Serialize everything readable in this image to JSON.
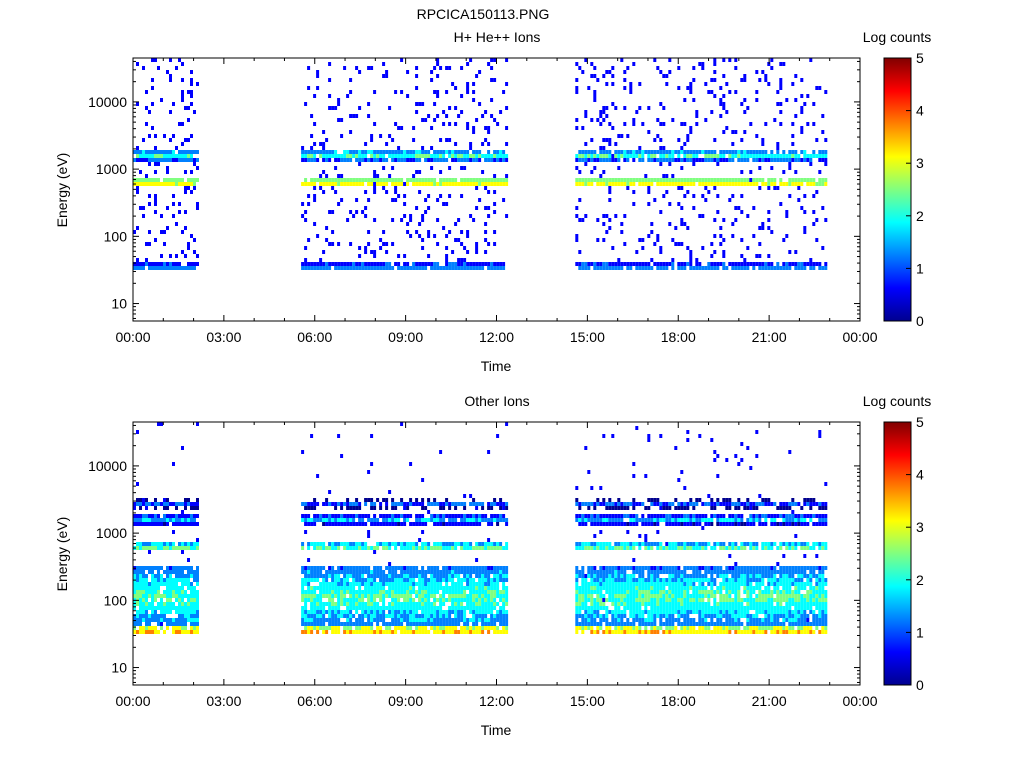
{
  "title": "RPCICA150113.PNG",
  "colorbar": {
    "label": "Log counts",
    "ticks": [
      "0",
      "1",
      "2",
      "3",
      "4",
      "5"
    ],
    "range": [
      0,
      5
    ],
    "colors": [
      "#00008f",
      "#0000ff",
      "#0080ff",
      "#00ffff",
      "#80ff80",
      "#ffff00",
      "#ff8000",
      "#ff0000",
      "#800000"
    ]
  },
  "chart_data": [
    {
      "type": "heatmap",
      "title": "H+ He++ Ions",
      "xlabel": "Time",
      "ylabel": "Energy (eV)",
      "xticks": [
        "00:00",
        "03:00",
        "06:00",
        "09:00",
        "12:00",
        "15:00",
        "18:00",
        "21:00",
        "00:00"
      ],
      "xlim_hours": [
        0,
        24
      ],
      "yscale": "log",
      "ylim": [
        5.5,
        45000
      ],
      "yticks": [
        "10",
        "100",
        "1000",
        "10000"
      ],
      "data_intervals_hours": [
        [
          0,
          2.15
        ],
        [
          5.55,
          12.3
        ],
        [
          14.6,
          22.9
        ]
      ],
      "bands": [
        {
          "energy_ev": 1600,
          "log_counts": 2.2
        },
        {
          "energy_ev": 620,
          "log_counts": 3.3
        },
        {
          "energy_ev": 35,
          "log_counts": 1.5
        }
      ],
      "colorbar_label": "Log counts",
      "colorbar_range": [
        0,
        5
      ]
    },
    {
      "type": "heatmap",
      "title": "Other Ions",
      "xlabel": "Time",
      "ylabel": "Energy (eV)",
      "xticks": [
        "00:00",
        "03:00",
        "06:00",
        "09:00",
        "12:00",
        "15:00",
        "18:00",
        "21:00",
        "00:00"
      ],
      "xlim_hours": [
        0,
        24
      ],
      "yscale": "log",
      "ylim": [
        5.5,
        45000
      ],
      "yticks": [
        "10",
        "100",
        "1000",
        "10000"
      ],
      "data_intervals_hours": [
        [
          0,
          2.15
        ],
        [
          5.55,
          12.3
        ],
        [
          14.6,
          22.9
        ]
      ],
      "bands": [
        {
          "energy_ev": 2700,
          "log_counts": 1.0
        },
        {
          "energy_ev": 1600,
          "log_counts": 1.7
        },
        {
          "energy_ev": 620,
          "log_counts": 2.4
        },
        {
          "energy_ev": 110,
          "log_counts": 2.3
        },
        {
          "energy_ev": 35,
          "log_counts": 3.6
        }
      ],
      "colorbar_label": "Log counts",
      "colorbar_range": [
        0,
        5
      ]
    }
  ]
}
